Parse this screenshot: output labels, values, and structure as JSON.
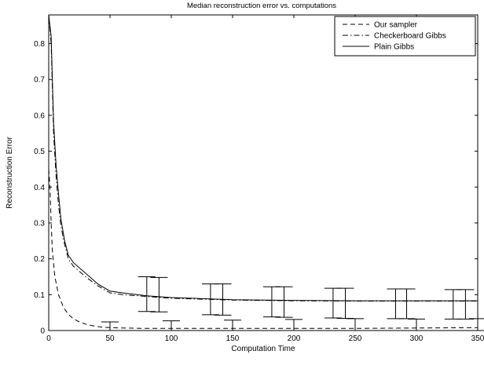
{
  "chart_data": {
    "type": "line",
    "title": "Median reconstruction error  vs. computations",
    "xlabel": "Computation Time",
    "ylabel": "Reconstruction Error",
    "xlim": [
      0,
      350
    ],
    "ylim": [
      0,
      0.88
    ],
    "xticks": [
      0,
      50,
      100,
      150,
      200,
      250,
      300,
      350
    ],
    "yticks": [
      0,
      0.1,
      0.2,
      0.3,
      0.4,
      0.5,
      0.6,
      0.7,
      0.8
    ],
    "grid": false,
    "legend_position": "top-right",
    "series": [
      {
        "name": "Our sampler",
        "style": "dashed",
        "x": [
          0,
          1,
          2,
          3,
          5,
          8,
          12,
          16,
          20,
          25,
          30,
          35,
          40,
          45,
          50,
          60,
          80,
          100,
          150,
          200,
          250,
          300,
          350
        ],
        "y": [
          0.45,
          0.4,
          0.3,
          0.22,
          0.15,
          0.1,
          0.065,
          0.045,
          0.033,
          0.024,
          0.018,
          0.014,
          0.011,
          0.009,
          0.008,
          0.007,
          0.006,
          0.006,
          0.006,
          0.006,
          0.006,
          0.007,
          0.008
        ],
        "errorbars": [
          {
            "x": 50,
            "low": 0.0,
            "high": 0.024
          },
          {
            "x": 100,
            "low": 0.0,
            "high": 0.027
          },
          {
            "x": 150,
            "low": 0.0,
            "high": 0.029
          },
          {
            "x": 200,
            "low": 0.0,
            "high": 0.031
          },
          {
            "x": 250,
            "low": 0.0,
            "high": 0.033
          },
          {
            "x": 300,
            "low": 0.0,
            "high": 0.032
          },
          {
            "x": 350,
            "low": 0.0,
            "high": 0.033
          }
        ]
      },
      {
        "name": "Checkerboard Gibbs",
        "style": "dashdot",
        "x": [
          0,
          2,
          4,
          6,
          8,
          10,
          13,
          16,
          20,
          25,
          30,
          40,
          50,
          60,
          80,
          100,
          150,
          200,
          250,
          300,
          350
        ],
        "y": [
          0.88,
          0.8,
          0.55,
          0.43,
          0.35,
          0.29,
          0.24,
          0.2,
          0.18,
          0.165,
          0.15,
          0.125,
          0.105,
          0.1,
          0.095,
          0.09,
          0.085,
          0.083,
          0.082,
          0.082,
          0.082
        ],
        "errorbars": [
          {
            "x": 90,
            "low": 0.052,
            "high": 0.148
          },
          {
            "x": 142,
            "low": 0.043,
            "high": 0.13
          },
          {
            "x": 192,
            "low": 0.037,
            "high": 0.122
          },
          {
            "x": 242,
            "low": 0.034,
            "high": 0.118
          },
          {
            "x": 292,
            "low": 0.033,
            "high": 0.116
          },
          {
            "x": 340,
            "low": 0.032,
            "high": 0.114
          }
        ]
      },
      {
        "name": "Plain Gibbs",
        "style": "solid",
        "x": [
          0,
          2,
          4,
          6,
          8,
          10,
          13,
          16,
          20,
          25,
          30,
          40,
          50,
          60,
          80,
          100,
          150,
          200,
          250,
          300,
          350
        ],
        "y": [
          0.88,
          0.82,
          0.58,
          0.46,
          0.38,
          0.31,
          0.25,
          0.21,
          0.19,
          0.175,
          0.16,
          0.13,
          0.11,
          0.105,
          0.097,
          0.092,
          0.086,
          0.084,
          0.083,
          0.083,
          0.083
        ],
        "errorbars": [
          {
            "x": 80,
            "low": 0.053,
            "high": 0.15
          },
          {
            "x": 132,
            "low": 0.044,
            "high": 0.13
          },
          {
            "x": 182,
            "low": 0.038,
            "high": 0.122
          },
          {
            "x": 232,
            "low": 0.035,
            "high": 0.118
          },
          {
            "x": 283,
            "low": 0.033,
            "high": 0.116
          },
          {
            "x": 330,
            "low": 0.032,
            "high": 0.114
          }
        ]
      }
    ]
  }
}
